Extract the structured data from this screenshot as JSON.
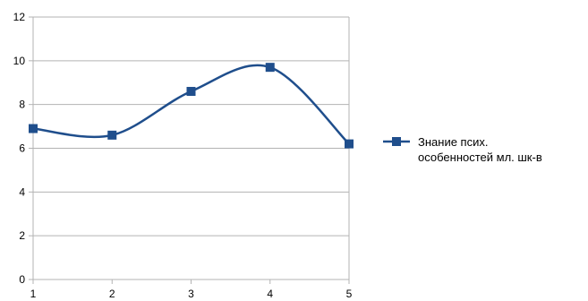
{
  "chart_data": {
    "type": "line",
    "title": "",
    "xlabel": "",
    "ylabel": "",
    "x": [
      1,
      2,
      3,
      4,
      5
    ],
    "x_tick_labels": [
      "1",
      "2",
      "3",
      "4",
      "5"
    ],
    "y_tick_labels": [
      "0",
      "2",
      "4",
      "6",
      "8",
      "10",
      "12"
    ],
    "ylim": [
      0,
      12
    ],
    "xlim": [
      1,
      5
    ],
    "grid": "horizontal",
    "smoothed": true,
    "legend_position": "right",
    "series": [
      {
        "name": "Знание псих. особенностей мл. шк-в",
        "name_lines": [
          "Знание псих.",
          "особенностей мл. шк-в"
        ],
        "values": [
          6.9,
          6.6,
          8.6,
          9.7,
          6.2
        ],
        "color": "#1f4e8c",
        "marker": "square"
      }
    ],
    "colors": {
      "grid": "#b3b3b3",
      "axis": "#b3b3b3",
      "series": "#1f4e8c"
    }
  }
}
